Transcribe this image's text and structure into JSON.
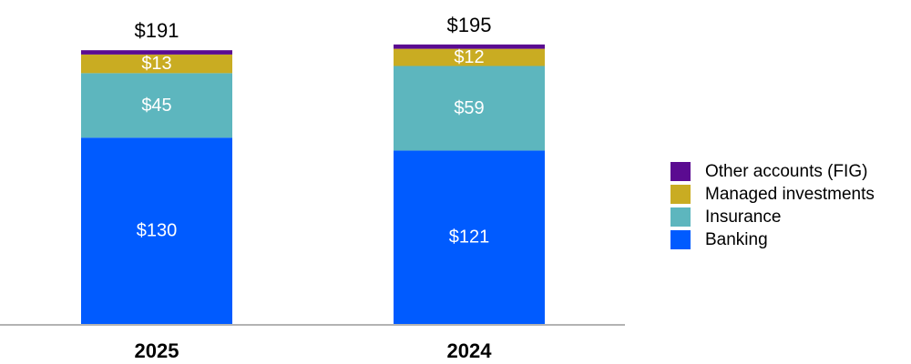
{
  "chart_data": {
    "type": "bar",
    "stacked": true,
    "categories": [
      "2025",
      "2024"
    ],
    "totals": [
      "$191",
      "$195"
    ],
    "total_values": [
      191,
      195
    ],
    "series": [
      {
        "name": "Banking",
        "color": "#005BFF",
        "values": [
          130,
          121
        ],
        "labels": [
          "$130",
          "$121"
        ]
      },
      {
        "name": "Insurance",
        "color": "#5DB6BE",
        "values": [
          45,
          59
        ],
        "labels": [
          "$45",
          "$59"
        ]
      },
      {
        "name": "Managed investments",
        "color": "#C9AC22",
        "values": [
          13,
          12
        ],
        "labels": [
          "$13",
          "$12"
        ]
      },
      {
        "name": "Other accounts (FIG)",
        "color": "#5B0B91",
        "values": [
          3,
          3
        ],
        "labels": [
          "",
          ""
        ]
      }
    ],
    "legend_order": [
      "Other accounts (FIG)",
      "Managed investments",
      "Insurance",
      "Banking"
    ],
    "legend_position": "right",
    "ylim": [
      0,
      195
    ],
    "grid": false
  }
}
